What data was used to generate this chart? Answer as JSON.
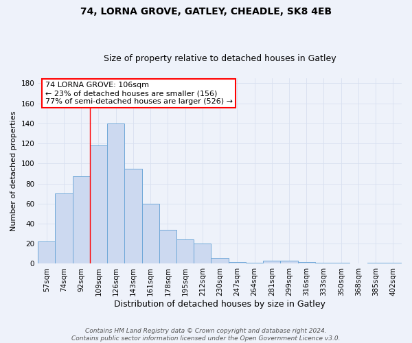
{
  "title": "74, LORNA GROVE, GATLEY, CHEADLE, SK8 4EB",
  "subtitle": "Size of property relative to detached houses in Gatley",
  "xlabel": "Distribution of detached houses by size in Gatley",
  "ylabel": "Number of detached properties",
  "categories": [
    "57sqm",
    "74sqm",
    "92sqm",
    "109sqm",
    "126sqm",
    "143sqm",
    "161sqm",
    "178sqm",
    "195sqm",
    "212sqm",
    "230sqm",
    "247sqm",
    "264sqm",
    "281sqm",
    "299sqm",
    "316sqm",
    "333sqm",
    "350sqm",
    "368sqm",
    "385sqm",
    "402sqm"
  ],
  "values": [
    22,
    70,
    87,
    118,
    140,
    95,
    60,
    34,
    24,
    20,
    6,
    2,
    1,
    3,
    3,
    2,
    1,
    1,
    0,
    1,
    1
  ],
  "bar_color": "#ccd9f0",
  "bar_edge_color": "#6fa8d8",
  "ylim": [
    0,
    185
  ],
  "yticks": [
    0,
    20,
    40,
    60,
    80,
    100,
    120,
    140,
    160,
    180
  ],
  "prop_line_index": 2.5,
  "annotation_title": "74 LORNA GROVE: 106sqm",
  "annotation_line1": "← 23% of detached houses are smaller (156)",
  "annotation_line2": "77% of semi-detached houses are larger (526) →",
  "footer_line1": "Contains HM Land Registry data © Crown copyright and database right 2024.",
  "footer_line2": "Contains public sector information licensed under the Open Government Licence v3.0.",
  "background_color": "#eef2fa",
  "grid_color": "#d8e0f0",
  "title_fontsize": 10,
  "subtitle_fontsize": 9,
  "xlabel_fontsize": 9,
  "ylabel_fontsize": 8,
  "tick_fontsize": 7.5,
  "annotation_fontsize": 8,
  "footer_fontsize": 6.5
}
